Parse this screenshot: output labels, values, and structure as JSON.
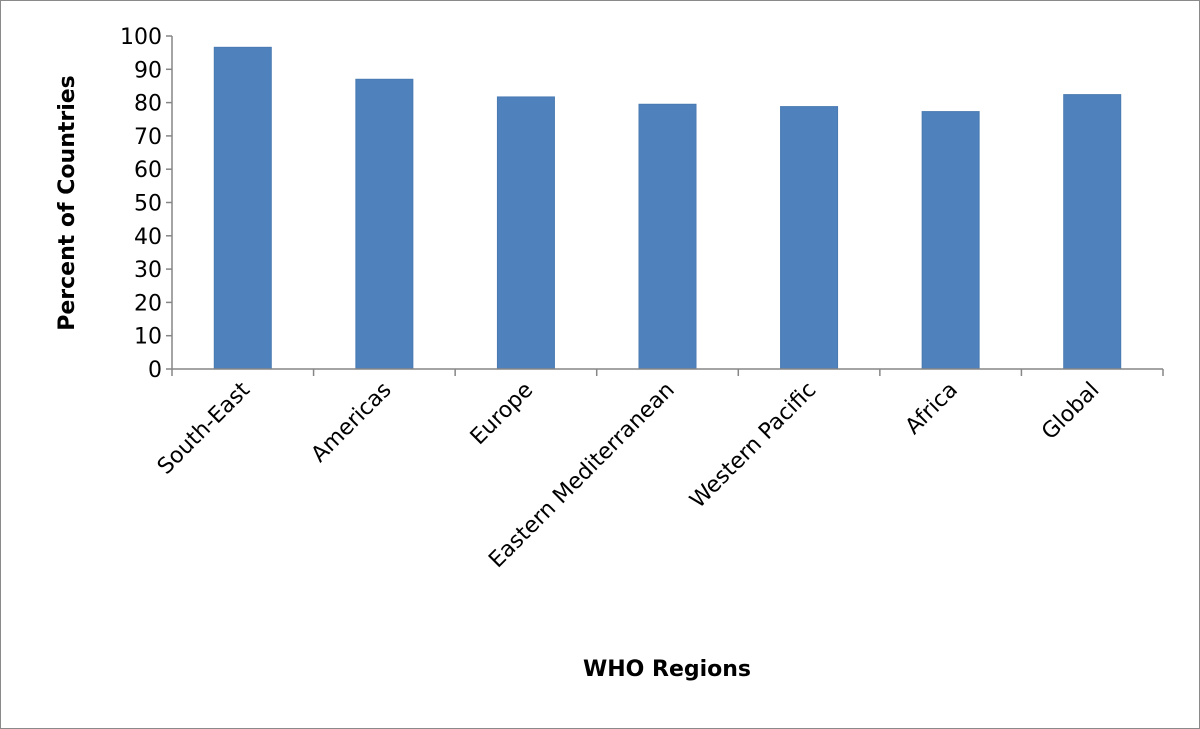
{
  "chart_data": {
    "type": "bar",
    "title": "",
    "xlabel": "WHO Regions",
    "ylabel": "Percent of Countries",
    "categories": [
      "South-East",
      "Americas",
      "Europe",
      "Eastern Mediterranean",
      "Western Pacific",
      "Africa",
      "Global"
    ],
    "values": [
      96.6,
      87,
      81.7,
      79.5,
      78.8,
      77.3,
      82.4
    ],
    "ylim": [
      0,
      100
    ],
    "yticks": [
      "0",
      "10",
      "20",
      "30",
      "40",
      "50",
      "60",
      "70",
      "80",
      "90",
      "100"
    ],
    "grid": false,
    "legend": "none",
    "bar_color": "#4f81bd"
  }
}
